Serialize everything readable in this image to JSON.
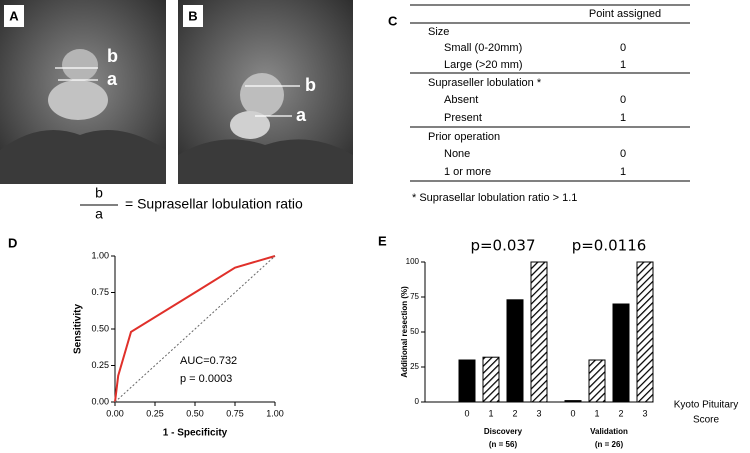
{
  "panels": {
    "A": {
      "label": "A",
      "marks": [
        "b",
        "a"
      ]
    },
    "B": {
      "label": "B",
      "marks": [
        "b",
        "a"
      ]
    },
    "ratio": {
      "numerator": "b",
      "denominator": "a",
      "text": "= Suprasellar lobulation ratio"
    },
    "C": {
      "label": "C",
      "header": "Point assigned",
      "rows": [
        [
          "Size",
          null
        ],
        [
          "Small (0-20mm)",
          0
        ],
        [
          "Large (>20 mm)",
          1
        ],
        [
          "Supraseller lobulation *",
          null
        ],
        [
          "Absent",
          0
        ],
        [
          "Present",
          1
        ],
        [
          "Prior operation",
          null
        ],
        [
          "None",
          0
        ],
        [
          "1 or more",
          1
        ]
      ],
      "footnote": "* Suprasellar lobulation ratio > 1.1"
    },
    "D": {
      "label": "D"
    },
    "E": {
      "label": "E"
    }
  },
  "chart_data": [
    {
      "type": "line",
      "xlabel": "1 - Specificity",
      "ylabel": "Sensitivity",
      "xlim": [
        0,
        1
      ],
      "ylim": [
        0,
        1
      ],
      "xticks": [
        {
          "value": 0,
          "label": "0.00"
        },
        {
          "value": 0.25,
          "label": "0.25"
        },
        {
          "value": 0.5,
          "label": "0.50"
        },
        {
          "value": 0.75,
          "label": "0.75"
        },
        {
          "value": 1,
          "label": "1.00"
        }
      ],
      "yticks": [
        {
          "value": 0,
          "label": "0.00"
        },
        {
          "value": 0.25,
          "label": "0.25"
        },
        {
          "value": 0.5,
          "label": "0.50"
        },
        {
          "value": 0.75,
          "label": "0.75"
        },
        {
          "value": 1,
          "label": "1.00"
        }
      ],
      "series": [
        {
          "color": "#e0302a",
          "x": [
            0,
            0.02,
            0.1,
            0.5,
            0.75,
            1
          ],
          "values": [
            0,
            0.18,
            0.48,
            0.75,
            0.92,
            1
          ]
        },
        {
          "color": "#666666",
          "dash": "dotted",
          "x": [
            0,
            1
          ],
          "values": [
            0,
            1
          ]
        }
      ],
      "annotations": [
        "AUC=0.732",
        "p = 0.0003"
      ]
    },
    {
      "type": "bar",
      "ylabel": "Additional resection (%)",
      "xlabel_lines": [
        "Kyoto Pituitary",
        "Score"
      ],
      "ylim": [
        0,
        100
      ],
      "yticks": [
        0,
        25,
        50,
        75,
        100
      ],
      "categories": [
        "0",
        "1",
        "2",
        "3",
        "0",
        "1",
        "2",
        "3"
      ],
      "values": [
        30,
        32,
        73,
        100,
        1,
        30,
        70,
        100
      ],
      "fills": [
        "solid",
        "hatch",
        "solid",
        "hatch",
        "solid",
        "hatch",
        "solid",
        "hatch"
      ],
      "color": "#000000",
      "groups": [
        {
          "label": "Discovery",
          "sublabel": "(n = 56)",
          "p": "p=0.037"
        },
        {
          "label": "Validation",
          "sublabel": "(n = 26)",
          "p": "p=0.0116"
        }
      ]
    }
  ]
}
